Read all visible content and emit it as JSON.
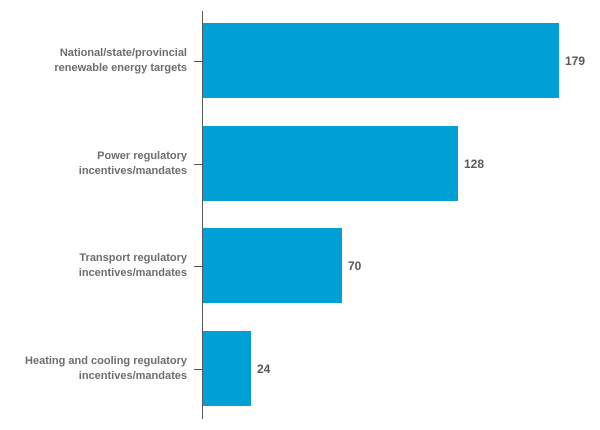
{
  "chart_data": {
    "type": "bar",
    "orientation": "horizontal",
    "title": "",
    "xlabel": "",
    "ylabel": "",
    "categories": [
      "National/state/provincial renewable energy targets",
      "Power regulatory incentives/mandates",
      "Transport regulatory incentives/mandates",
      "Heating and cooling regulatory incentives/mandates"
    ],
    "category_lines": [
      "National/state/provincial\nrenewable energy targets",
      "Power regulatory\nincentives/mandates",
      "Transport regulatory\nincentives/mandates",
      "Heating and cooling regulatory\nincentives/mandates"
    ],
    "values": [
      179,
      128,
      70,
      24
    ],
    "xlim": [
      0,
      200
    ],
    "grid": false,
    "legend_position": "none",
    "bar_color": "#00a0d6",
    "label_color": "#6d6e71",
    "value_color": "#58595b",
    "axis_color": "#58595b"
  }
}
